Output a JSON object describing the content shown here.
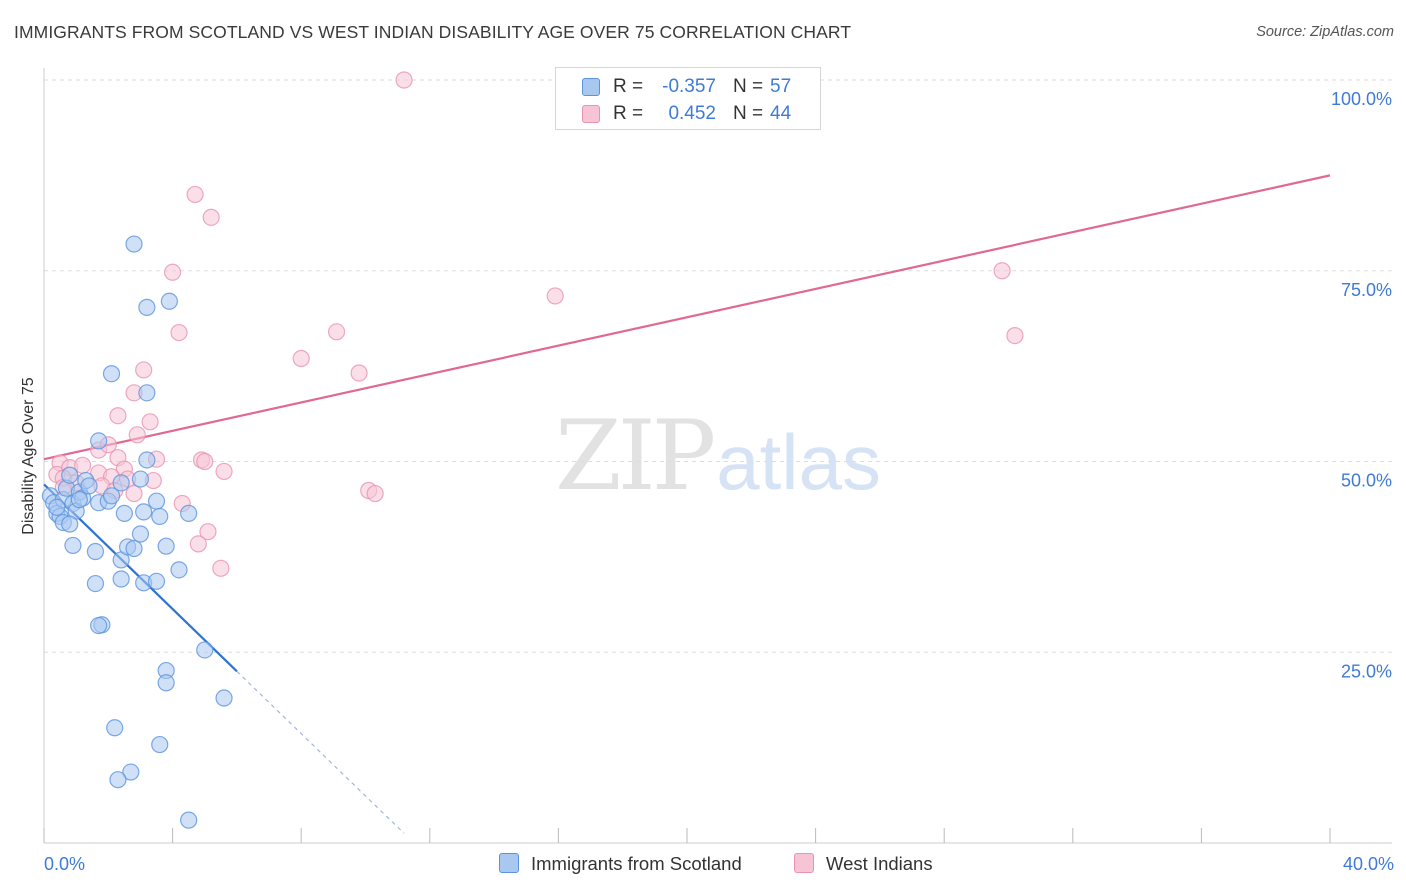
{
  "header": {
    "title": "IMMIGRANTS FROM SCOTLAND VS WEST INDIAN DISABILITY AGE OVER 75 CORRELATION CHART",
    "source": "Source: ZipAtlas.com"
  },
  "watermark": {
    "zip": "ZIP",
    "atlas": "atlas"
  },
  "colors": {
    "blue_fill": "#a9c8f0",
    "blue_stroke": "#5b93df",
    "blue_line": "#2e73d2",
    "pink_fill": "#f7c4d6",
    "pink_stroke": "#e993b3",
    "pink_line": "#e06894",
    "grid": "#dddddd",
    "tick_text": "#3e7bd6"
  },
  "legend": {
    "rows": [
      {
        "r_label": "R =",
        "r_value": "-0.357",
        "n_label": "N =",
        "n_value": "57"
      },
      {
        "r_label": "R =",
        "r_value": "0.452",
        "n_label": "N =",
        "n_value": "44"
      }
    ]
  },
  "bottom_legend": {
    "items": [
      {
        "label": "Immigrants from Scotland"
      },
      {
        "label": "West Indians"
      }
    ]
  },
  "chart_data": {
    "type": "scatter",
    "title": "IMMIGRANTS FROM SCOTLAND VS WEST INDIAN DISABILITY AGE OVER 75 CORRELATION CHART",
    "xlabel": "",
    "ylabel": "Disability Age Over 75",
    "xlim": [
      0,
      40
    ],
    "ylim": [
      0,
      102
    ],
    "x_ticks": [
      "0.0%",
      "40.0%"
    ],
    "y_ticks": [
      {
        "value": 25,
        "label": "25.0%"
      },
      {
        "value": 50,
        "label": "50.0%"
      },
      {
        "value": 75,
        "label": "75.0%"
      },
      {
        "value": 100,
        "label": "100.0%"
      }
    ],
    "grid": true,
    "legend_position": "top-center",
    "series": [
      {
        "name": "Immigrants from Scotland",
        "R": -0.357,
        "N": 57,
        "trend": {
          "x_start": 0.0,
          "y_start": 47.0,
          "x_end": 6.0,
          "y_end": 22.5,
          "dashed_to_x": 11.2
        },
        "points": [
          [
            0.2,
            45.5
          ],
          [
            0.3,
            44.6
          ],
          [
            0.4,
            43.2
          ],
          [
            0.5,
            42.8
          ],
          [
            0.6,
            45.0
          ],
          [
            0.7,
            46.5
          ],
          [
            0.8,
            48.2
          ],
          [
            0.9,
            44.5
          ],
          [
            1.0,
            43.5
          ],
          [
            1.1,
            46.0
          ],
          [
            1.2,
            45.2
          ],
          [
            1.3,
            47.5
          ],
          [
            0.4,
            44.0
          ],
          [
            0.6,
            42.0
          ],
          [
            0.8,
            41.8
          ],
          [
            1.4,
            46.8
          ],
          [
            0.9,
            39.0
          ],
          [
            1.7,
            44.6
          ],
          [
            1.6,
            38.2
          ],
          [
            2.0,
            44.8
          ],
          [
            1.7,
            52.7
          ],
          [
            2.4,
            37.1
          ],
          [
            2.6,
            38.8
          ],
          [
            1.6,
            34.0
          ],
          [
            2.8,
            38.6
          ],
          [
            3.1,
            34.1
          ],
          [
            3.0,
            40.5
          ],
          [
            1.8,
            28.6
          ],
          [
            2.1,
            61.5
          ],
          [
            1.7,
            28.5
          ],
          [
            2.4,
            34.6
          ],
          [
            2.8,
            78.5
          ],
          [
            3.2,
            70.2
          ],
          [
            3.2,
            59.0
          ],
          [
            3.2,
            50.2
          ],
          [
            3.5,
            44.8
          ],
          [
            2.5,
            43.2
          ],
          [
            3.9,
            71.0
          ],
          [
            3.5,
            34.3
          ],
          [
            4.5,
            43.2
          ],
          [
            4.2,
            35.8
          ],
          [
            5.0,
            25.3
          ],
          [
            5.6,
            19.0
          ],
          [
            2.2,
            15.1
          ],
          [
            3.6,
            12.9
          ],
          [
            2.7,
            9.3
          ],
          [
            2.3,
            8.3
          ],
          [
            4.5,
            3.0
          ],
          [
            3.8,
            22.6
          ],
          [
            3.8,
            21.0
          ],
          [
            2.4,
            47.2
          ],
          [
            3.0,
            47.7
          ],
          [
            2.1,
            45.5
          ],
          [
            3.1,
            43.4
          ],
          [
            3.6,
            42.8
          ],
          [
            3.8,
            38.9
          ],
          [
            1.1,
            45.0
          ]
        ]
      },
      {
        "name": "West Indians",
        "R": 0.452,
        "N": 44,
        "trend": {
          "x_start": 0.0,
          "y_start": 50.3,
          "x_end": 40.0,
          "y_end": 87.5
        },
        "points": [
          [
            11.2,
            100.0
          ],
          [
            4.7,
            85.0
          ],
          [
            5.2,
            82.0
          ],
          [
            4.0,
            74.8
          ],
          [
            4.2,
            66.9
          ],
          [
            9.1,
            67.0
          ],
          [
            8.0,
            63.5
          ],
          [
            9.8,
            61.6
          ],
          [
            3.1,
            62.0
          ],
          [
            15.9,
            71.7
          ],
          [
            29.8,
            75.0
          ],
          [
            30.2,
            66.5
          ],
          [
            2.3,
            56.0
          ],
          [
            2.8,
            59.0
          ],
          [
            3.3,
            55.2
          ],
          [
            2.9,
            53.5
          ],
          [
            1.7,
            51.5
          ],
          [
            2.0,
            52.2
          ],
          [
            2.3,
            50.5
          ],
          [
            2.5,
            49.0
          ],
          [
            0.5,
            49.8
          ],
          [
            0.8,
            49.2
          ],
          [
            1.2,
            49.5
          ],
          [
            1.7,
            48.5
          ],
          [
            2.1,
            48.0
          ],
          [
            2.6,
            47.7
          ],
          [
            0.4,
            48.3
          ],
          [
            0.6,
            47.8
          ],
          [
            1.0,
            47.2
          ],
          [
            0.6,
            46.6
          ],
          [
            1.8,
            46.8
          ],
          [
            2.2,
            46.2
          ],
          [
            2.8,
            45.8
          ],
          [
            3.4,
            47.5
          ],
          [
            3.5,
            50.3
          ],
          [
            4.9,
            50.2
          ],
          [
            5.0,
            50.0
          ],
          [
            5.6,
            48.7
          ],
          [
            10.1,
            46.2
          ],
          [
            10.3,
            45.8
          ],
          [
            4.3,
            44.5
          ],
          [
            5.1,
            40.8
          ],
          [
            4.8,
            39.2
          ],
          [
            5.5,
            36.0
          ]
        ]
      }
    ]
  }
}
